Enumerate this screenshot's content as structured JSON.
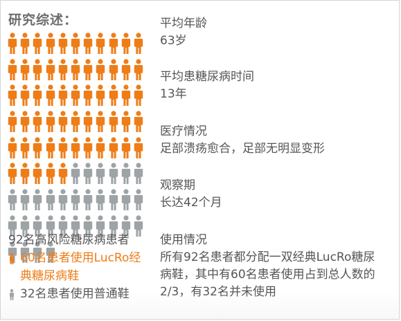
{
  "title": "研究综述：",
  "people": {
    "total": 92,
    "used": 60,
    "per_row": 11,
    "colors": {
      "used": "#ee7d18",
      "unused": "#9ea3a6"
    }
  },
  "summary": {
    "total_text": "92名高风险糖尿病患者",
    "used_text": "60名患者使用LucRo经典糖尿病鞋",
    "unused_text": "32名患者使用普通鞋"
  },
  "info": [
    {
      "label": "平均年龄",
      "value": "63岁"
    },
    {
      "label": "平均患糖尿病时间",
      "value": "13年"
    },
    {
      "label": "医疗情况",
      "value": "足部溃疡愈合，足部无明显变形"
    },
    {
      "label": "观察期",
      "value": "长达42个月"
    },
    {
      "label": "使用情况",
      "value": "所有92名患者都分配一双经典LucRo糖尿病鞋，其中有60名患者使用占到总人数的2/3，有32名并未使用"
    }
  ]
}
